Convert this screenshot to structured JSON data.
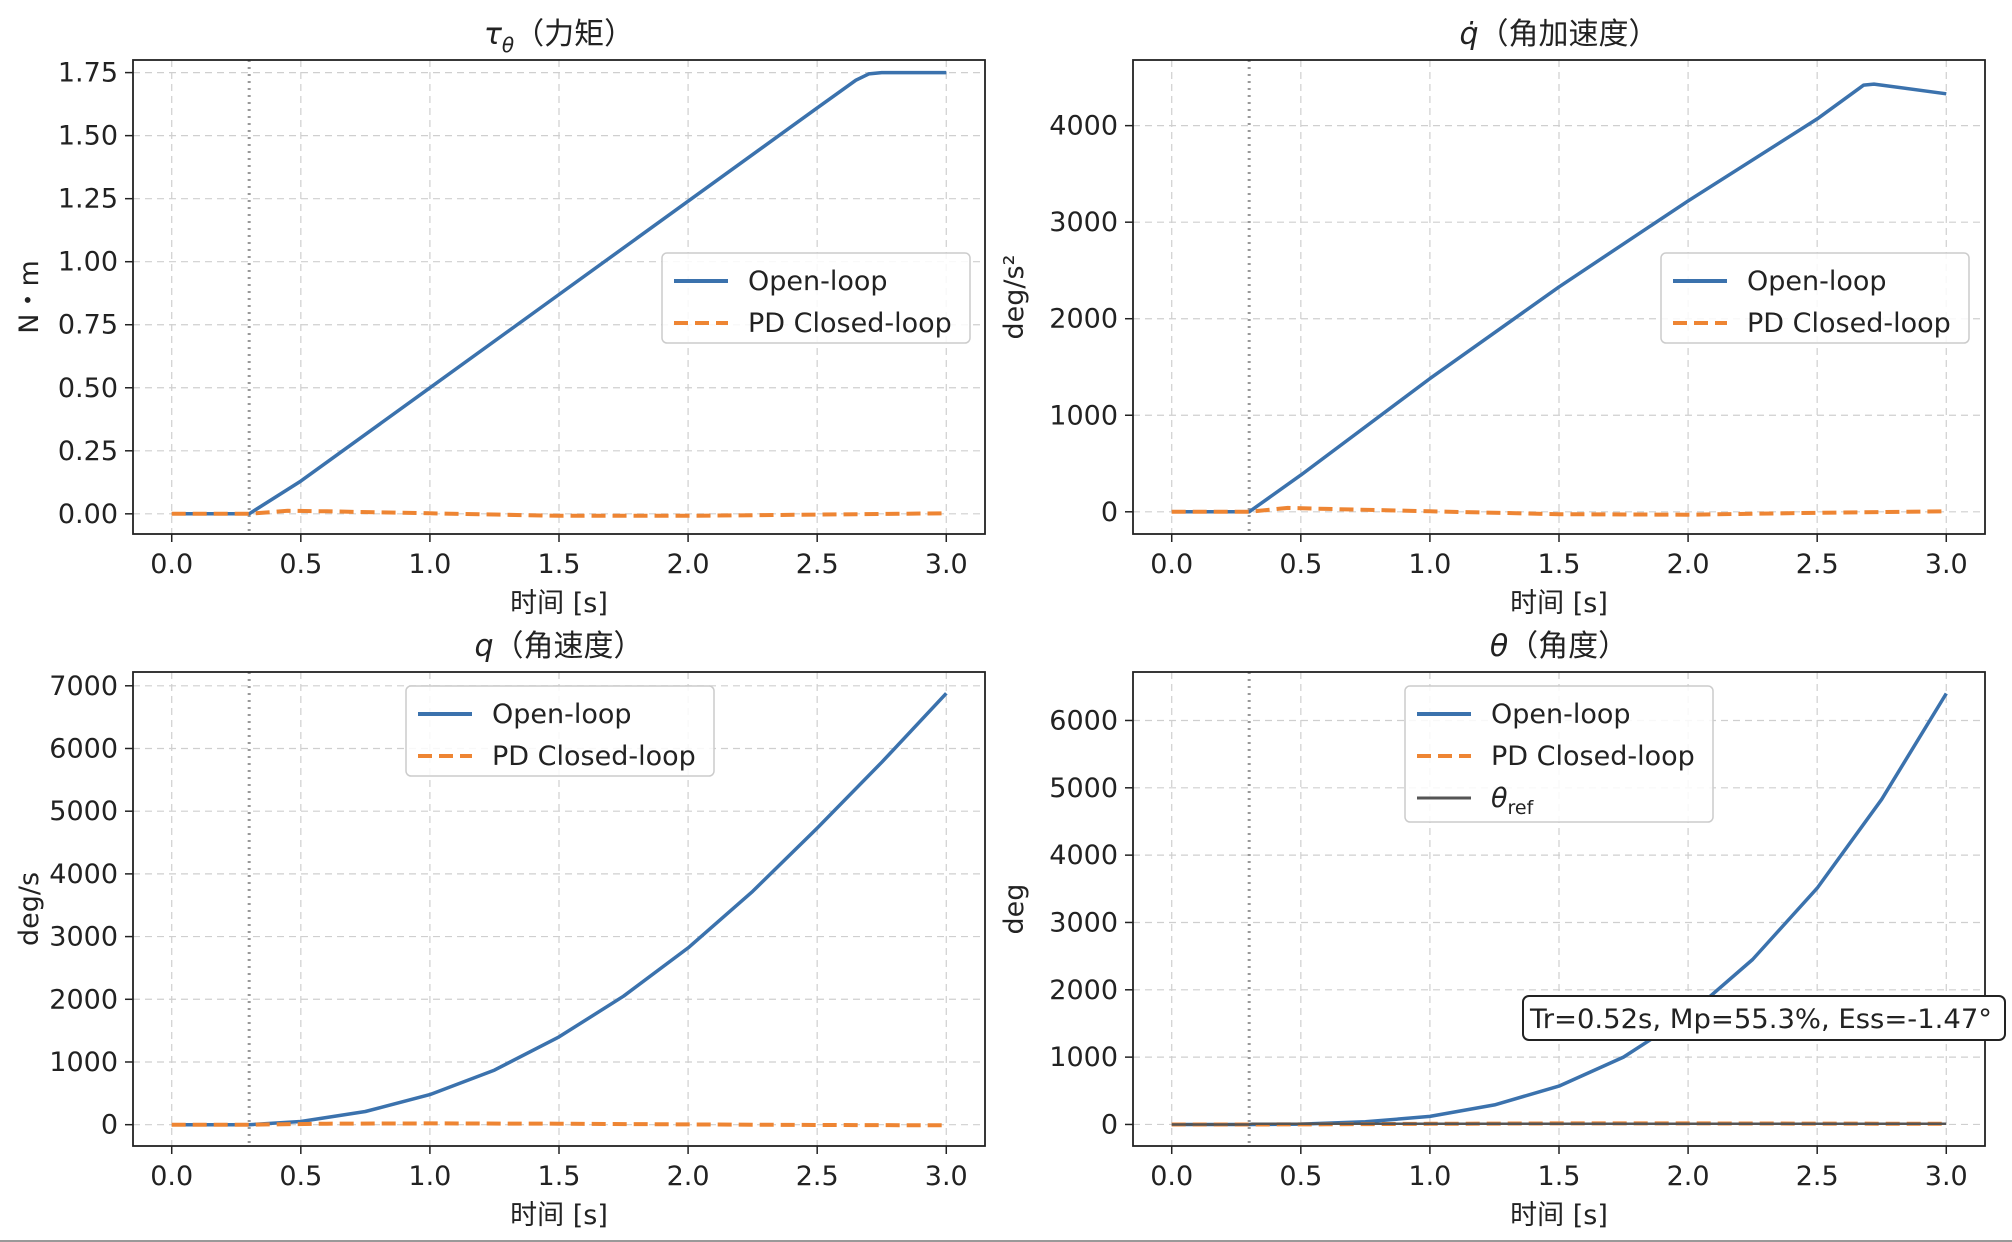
{
  "figure": {
    "colors": {
      "open_loop": "#3b72ad",
      "pd_closed_loop": "#ee8533",
      "theta_ref": "#555555",
      "step_marker": "#999999",
      "grid": "#cfcfcf"
    }
  },
  "chart_data": [
    {
      "type": "line",
      "title": "τθ（力矩）",
      "title_main": "τ",
      "title_sub": "θ",
      "title_rest": "（力矩）",
      "xlabel": "时间 [s]",
      "ylabel": "N・m",
      "xlim": [
        -0.15,
        3.15
      ],
      "ylim": [
        -0.08,
        1.8
      ],
      "xticks": [
        0.0,
        0.5,
        1.0,
        1.5,
        2.0,
        2.5,
        3.0
      ],
      "xtick_labels": [
        "0.0",
        "0.5",
        "1.0",
        "1.5",
        "2.0",
        "2.5",
        "3.0"
      ],
      "yticks": [
        0.0,
        0.25,
        0.5,
        0.75,
        1.0,
        1.25,
        1.5,
        1.75
      ],
      "ytick_labels": [
        "0.00",
        "0.25",
        "0.50",
        "0.75",
        "1.00",
        "1.25",
        "1.50",
        "1.75"
      ],
      "step_time": 0.3,
      "legend_position": "center-right",
      "legend": [
        "Open-loop",
        "PD Closed-loop"
      ],
      "series": [
        {
          "name": "Open-loop",
          "style": "solid",
          "x": [
            0,
            0.3,
            0.5,
            1.0,
            1.5,
            2.0,
            2.5,
            2.65,
            2.7,
            2.75,
            3.0
          ],
          "y": [
            0,
            0,
            0.13,
            0.5,
            0.87,
            1.24,
            1.61,
            1.72,
            1.745,
            1.75,
            1.75
          ]
        },
        {
          "name": "PD Closed-loop",
          "style": "dashed",
          "x": [
            0,
            0.3,
            0.45,
            0.6,
            1.0,
            1.5,
            2.0,
            2.5,
            3.0
          ],
          "y": [
            0,
            0,
            0.012,
            0.01,
            0.002,
            -0.008,
            -0.008,
            -0.003,
            0.002
          ]
        }
      ]
    },
    {
      "type": "line",
      "title": "q̇（角加速度）",
      "title_main": "q̇",
      "title_sub": "",
      "title_rest": "（角加速度）",
      "xlabel": "时间 [s]",
      "ylabel": "deg/s²",
      "xlim": [
        -0.15,
        3.15
      ],
      "ylim": [
        -230,
        4680
      ],
      "xticks": [
        0.0,
        0.5,
        1.0,
        1.5,
        2.0,
        2.5,
        3.0
      ],
      "xtick_labels": [
        "0.0",
        "0.5",
        "1.0",
        "1.5",
        "2.0",
        "2.5",
        "3.0"
      ],
      "yticks": [
        0,
        1000,
        2000,
        3000,
        4000
      ],
      "ytick_labels": [
        "0",
        "1000",
        "2000",
        "3000",
        "4000"
      ],
      "step_time": 0.3,
      "legend_position": "center-right",
      "legend": [
        "Open-loop",
        "PD Closed-loop"
      ],
      "series": [
        {
          "name": "Open-loop",
          "style": "solid",
          "x": [
            0,
            0.3,
            0.5,
            1.0,
            1.5,
            2.0,
            2.5,
            2.68,
            2.72,
            3.0
          ],
          "y": [
            0,
            0,
            380,
            1380,
            2330,
            3220,
            4070,
            4420,
            4430,
            4330
          ]
        },
        {
          "name": "PD Closed-loop",
          "style": "dashed",
          "x": [
            0,
            0.3,
            0.45,
            0.6,
            1.0,
            1.5,
            2.0,
            2.5,
            3.0
          ],
          "y": [
            0,
            0,
            40,
            30,
            5,
            -25,
            -30,
            -10,
            5
          ]
        }
      ]
    },
    {
      "type": "line",
      "title": "q（角速度）",
      "title_main": "q",
      "title_sub": "",
      "title_rest": "（角速度）",
      "xlabel": "时间 [s]",
      "ylabel": "deg/s",
      "xlim": [
        -0.15,
        3.15
      ],
      "ylim": [
        -340,
        7220
      ],
      "xticks": [
        0.0,
        0.5,
        1.0,
        1.5,
        2.0,
        2.5,
        3.0
      ],
      "xtick_labels": [
        "0.0",
        "0.5",
        "1.0",
        "1.5",
        "2.0",
        "2.5",
        "3.0"
      ],
      "yticks": [
        0,
        1000,
        2000,
        3000,
        4000,
        5000,
        6000,
        7000
      ],
      "ytick_labels": [
        "0",
        "1000",
        "2000",
        "3000",
        "4000",
        "5000",
        "6000",
        "7000"
      ],
      "step_time": 0.3,
      "legend_position": "upper-center",
      "legend": [
        "Open-loop",
        "PD Closed-loop"
      ],
      "series": [
        {
          "name": "Open-loop",
          "style": "solid",
          "x": [
            0,
            0.3,
            0.5,
            0.75,
            1.0,
            1.25,
            1.5,
            1.75,
            2.0,
            2.25,
            2.5,
            2.75,
            3.0
          ],
          "y": [
            0,
            0,
            50,
            210,
            480,
            870,
            1400,
            2050,
            2820,
            3720,
            4730,
            5780,
            6880
          ]
        },
        {
          "name": "PD Closed-loop",
          "style": "dashed",
          "x": [
            0,
            0.3,
            0.6,
            1.0,
            1.5,
            2.0,
            2.5,
            3.0
          ],
          "y": [
            0,
            0,
            15,
            20,
            15,
            5,
            -5,
            -10
          ]
        }
      ]
    },
    {
      "type": "line",
      "title": "θ（角度）",
      "title_main": "θ",
      "title_sub": "",
      "title_rest": "（角度）",
      "xlabel": "时间 [s]",
      "ylabel": "deg",
      "xlim": [
        -0.15,
        3.15
      ],
      "ylim": [
        -320,
        6720
      ],
      "xticks": [
        0.0,
        0.5,
        1.0,
        1.5,
        2.0,
        2.5,
        3.0
      ],
      "xtick_labels": [
        "0.0",
        "0.5",
        "1.0",
        "1.5",
        "2.0",
        "2.5",
        "3.0"
      ],
      "yticks": [
        0,
        1000,
        2000,
        3000,
        4000,
        5000,
        6000
      ],
      "ytick_labels": [
        "0",
        "1000",
        "2000",
        "3000",
        "4000",
        "5000",
        "6000"
      ],
      "step_time": 0.3,
      "legend_position": "upper-center",
      "legend": [
        "Open-loop",
        "PD Closed-loop",
        "θref"
      ],
      "legend_ref_main": "θ",
      "legend_ref_sub": "ref",
      "annotation": "Tr=0.52s, Mp=55.3%, Ess=-1.47°",
      "series": [
        {
          "name": "Open-loop",
          "style": "solid",
          "x": [
            0,
            0.3,
            0.5,
            0.75,
            1.0,
            1.25,
            1.5,
            1.75,
            2.0,
            2.25,
            2.5,
            2.75,
            3.0
          ],
          "y": [
            0,
            0,
            5,
            40,
            120,
            290,
            570,
            1000,
            1620,
            2450,
            3510,
            4830,
            6400
          ]
        },
        {
          "name": "PD Closed-loop",
          "style": "dashed",
          "x": [
            0,
            0.3,
            0.6,
            1.0,
            1.5,
            2.0,
            2.5,
            3.0
          ],
          "y": [
            0,
            0,
            3,
            10,
            15,
            15,
            12,
            10
          ]
        },
        {
          "name": "θref",
          "style": "solid-thin",
          "x": [
            0,
            0.3,
            0.31,
            3.0
          ],
          "y": [
            0,
            0,
            10,
            10
          ]
        }
      ]
    }
  ]
}
